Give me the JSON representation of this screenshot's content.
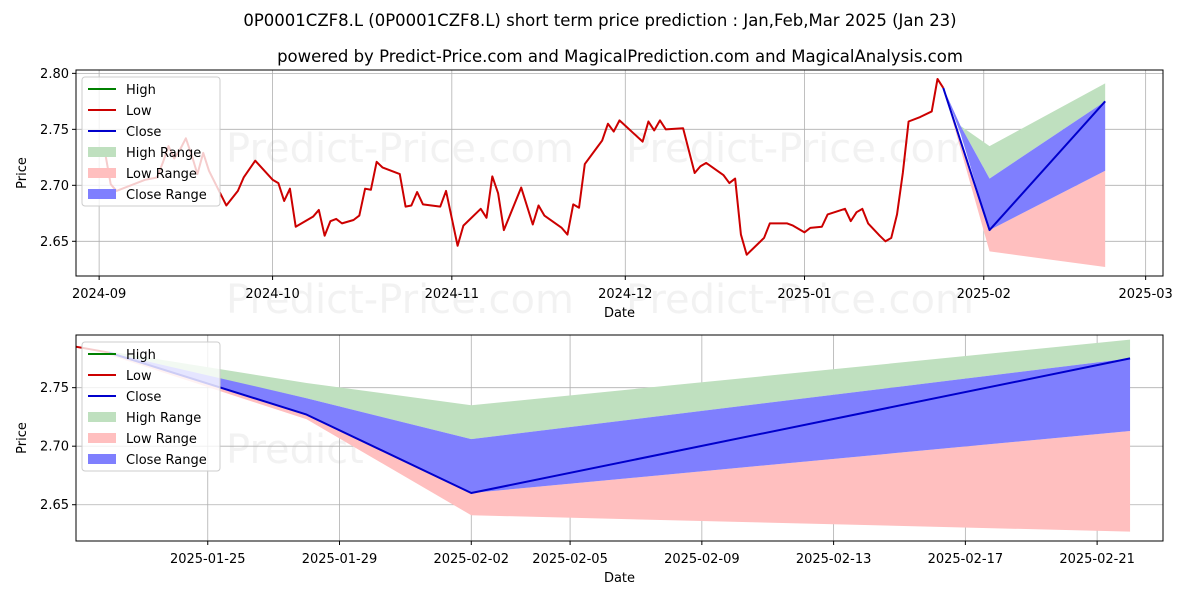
{
  "title": "0P0001CZF8.L (0P0001CZF8.L) short term price prediction : Jan,Feb,Mar 2025 (Jan 23)",
  "subtitle": "powered by Predict-Price.com and MagicalPrediction.com and MagicalAnalysis.com",
  "watermark": "Predict-Price.com",
  "colors": {
    "high": "#008000",
    "low": "#cc0000",
    "close": "#0000cc",
    "high_range": "#bfe0bf",
    "low_range": "#ffbfbf",
    "close_range": "#7f7ffe"
  },
  "legend": [
    "High",
    "Low",
    "Close",
    "High Range",
    "Low Range",
    "Close Range"
  ],
  "chart_data": [
    {
      "type": "line",
      "xlabel": "Date",
      "ylabel": "Price",
      "xlim": [
        "2024-08-28",
        "2025-03-04"
      ],
      "ylim": [
        2.619,
        2.803
      ],
      "x_ticks": [
        "2024-09",
        "2024-10",
        "2024-11",
        "2024-12",
        "2025-01",
        "2025-02",
        "2025-03"
      ],
      "y_ticks": [
        "2.65",
        "2.70",
        "2.75",
        "2.80"
      ],
      "grid": true,
      "legend_position": "upper left",
      "series": [
        {
          "name": "Low",
          "points": [
            [
              "2024-09-02",
              2.73
            ],
            [
              "2024-09-03",
              2.701
            ],
            [
              "2024-09-04",
              2.695
            ],
            [
              "2024-09-05",
              2.697
            ],
            [
              "2024-09-06",
              2.699
            ],
            [
              "2024-09-09",
              2.705
            ],
            [
              "2024-09-10",
              2.706
            ],
            [
              "2024-09-11",
              2.707
            ],
            [
              "2024-09-12",
              2.72
            ],
            [
              "2024-09-13",
              2.735
            ],
            [
              "2024-09-14",
              2.724
            ],
            [
              "2024-09-15",
              2.732
            ],
            [
              "2024-09-16",
              2.742
            ],
            [
              "2024-09-17",
              2.727
            ],
            [
              "2024-09-18",
              2.71
            ],
            [
              "2024-09-19",
              2.729
            ],
            [
              "2024-09-20",
              2.713
            ],
            [
              "2024-09-23",
              2.682
            ],
            [
              "2024-09-25",
              2.695
            ],
            [
              "2024-09-26",
              2.707
            ],
            [
              "2024-09-28",
              2.722
            ],
            [
              "2024-10-01",
              2.705
            ],
            [
              "2024-10-02",
              2.702
            ],
            [
              "2024-10-03",
              2.686
            ],
            [
              "2024-10-04",
              2.697
            ],
            [
              "2024-10-05",
              2.663
            ],
            [
              "2024-10-08",
              2.672
            ],
            [
              "2024-10-09",
              2.678
            ],
            [
              "2024-10-10",
              2.655
            ],
            [
              "2024-10-11",
              2.668
            ],
            [
              "2024-10-12",
              2.67
            ],
            [
              "2024-10-13",
              2.666
            ],
            [
              "2024-10-15",
              2.669
            ],
            [
              "2024-10-16",
              2.673
            ],
            [
              "2024-10-17",
              2.697
            ],
            [
              "2024-10-18",
              2.696
            ],
            [
              "2024-10-19",
              2.721
            ],
            [
              "2024-10-20",
              2.716
            ],
            [
              "2024-10-23",
              2.71
            ],
            [
              "2024-10-24",
              2.681
            ],
            [
              "2024-10-25",
              2.682
            ],
            [
              "2024-10-26",
              2.694
            ],
            [
              "2024-10-27",
              2.683
            ],
            [
              "2024-10-30",
              2.681
            ],
            [
              "2024-10-31",
              2.695
            ],
            [
              "2024-11-02",
              2.646
            ],
            [
              "2024-11-03",
              2.664
            ],
            [
              "2024-11-06",
              2.679
            ],
            [
              "2024-11-07",
              2.671
            ],
            [
              "2024-11-08",
              2.708
            ],
            [
              "2024-11-09",
              2.693
            ],
            [
              "2024-11-10",
              2.66
            ],
            [
              "2024-11-13",
              2.698
            ],
            [
              "2024-11-15",
              2.665
            ],
            [
              "2024-11-16",
              2.682
            ],
            [
              "2024-11-17",
              2.673
            ],
            [
              "2024-11-20",
              2.662
            ],
            [
              "2024-11-21",
              2.656
            ],
            [
              "2024-11-22",
              2.683
            ],
            [
              "2024-11-23",
              2.68
            ],
            [
              "2024-11-24",
              2.719
            ],
            [
              "2024-11-26",
              2.733
            ],
            [
              "2024-11-27",
              2.74
            ],
            [
              "2024-11-28",
              2.755
            ],
            [
              "2024-11-29",
              2.748
            ],
            [
              "2024-11-30",
              2.758
            ],
            [
              "2024-12-04",
              2.739
            ],
            [
              "2024-12-05",
              2.757
            ],
            [
              "2024-12-06",
              2.749
            ],
            [
              "2024-12-07",
              2.758
            ],
            [
              "2024-12-08",
              2.75
            ],
            [
              "2024-12-11",
              2.751
            ],
            [
              "2024-12-13",
              2.711
            ],
            [
              "2024-12-14",
              2.717
            ],
            [
              "2024-12-15",
              2.72
            ],
            [
              "2024-12-18",
              2.709
            ],
            [
              "2024-12-19",
              2.702
            ],
            [
              "2024-12-20",
              2.706
            ],
            [
              "2024-12-21",
              2.656
            ],
            [
              "2024-12-22",
              2.638
            ],
            [
              "2024-12-25",
              2.653
            ],
            [
              "2024-12-26",
              2.666
            ],
            [
              "2024-12-29",
              2.666
            ],
            [
              "2024-12-30",
              2.664
            ],
            [
              "2025-01-01",
              2.658
            ],
            [
              "2025-01-02",
              2.662
            ],
            [
              "2025-01-04",
              2.663
            ],
            [
              "2025-01-05",
              2.674
            ],
            [
              "2025-01-08",
              2.679
            ],
            [
              "2025-01-09",
              2.668
            ],
            [
              "2025-01-10",
              2.676
            ],
            [
              "2025-01-11",
              2.679
            ],
            [
              "2025-01-12",
              2.666
            ],
            [
              "2025-01-14",
              2.655
            ],
            [
              "2025-01-15",
              2.65
            ],
            [
              "2025-01-16",
              2.653
            ],
            [
              "2025-01-17",
              2.674
            ],
            [
              "2025-01-18",
              2.711
            ],
            [
              "2025-01-19",
              2.757
            ],
            [
              "2025-01-21",
              2.761
            ],
            [
              "2025-01-23",
              2.766
            ],
            [
              "2025-01-24",
              2.795
            ],
            [
              "2025-01-25",
              2.787
            ]
          ]
        },
        {
          "name": "Close",
          "points": [
            [
              "2025-01-25",
              2.787
            ],
            [
              "2025-02-02",
              2.66
            ],
            [
              "2025-02-22",
              2.775
            ]
          ]
        },
        {
          "name": "High Range",
          "upper": [
            [
              "2025-01-25",
              2.787
            ],
            [
              "2025-01-28",
              2.753
            ],
            [
              "2025-02-02",
              2.735
            ],
            [
              "2025-02-22",
              2.791
            ]
          ],
          "lower": [
            [
              "2025-01-25",
              2.787
            ],
            [
              "2025-01-28",
              2.753
            ],
            [
              "2025-02-02",
              2.706
            ],
            [
              "2025-02-22",
              2.775
            ]
          ]
        },
        {
          "name": "Low Range",
          "upper": [
            [
              "2025-01-25",
              2.787
            ],
            [
              "2025-02-02",
              2.66
            ],
            [
              "2025-02-22",
              2.713
            ]
          ],
          "lower": [
            [
              "2025-01-25",
              2.787
            ],
            [
              "2025-02-02",
              2.641
            ],
            [
              "2025-02-22",
              2.627
            ]
          ]
        },
        {
          "name": "Close Range",
          "upper": [
            [
              "2025-01-25",
              2.787
            ],
            [
              "2025-01-28",
              2.753
            ],
            [
              "2025-02-02",
              2.706
            ],
            [
              "2025-02-22",
              2.775
            ]
          ],
          "lower": [
            [
              "2025-01-25",
              2.787
            ],
            [
              "2025-01-28",
              2.746
            ],
            [
              "2025-02-02",
              2.66
            ],
            [
              "2025-02-22",
              2.713
            ]
          ]
        }
      ]
    },
    {
      "type": "line",
      "xlabel": "Date",
      "ylabel": "Price",
      "xlim": [
        "2025-01-21",
        "2025-02-23"
      ],
      "ylim": [
        2.619,
        2.795
      ],
      "x_ticks": [
        "2025-01-25",
        "2025-01-29",
        "2025-02-02",
        "2025-02-05",
        "2025-02-09",
        "2025-02-13",
        "2025-02-17",
        "2025-02-21"
      ],
      "y_ticks": [
        "2.65",
        "2.70",
        "2.75"
      ],
      "grid": true,
      "legend_position": "upper left",
      "series": [
        {
          "name": "Low",
          "points": [
            [
              "2025-01-21",
              2.785
            ],
            [
              "2025-01-22",
              2.78
            ]
          ]
        },
        {
          "name": "Close",
          "points": [
            [
              "2025-01-22",
              2.78
            ],
            [
              "2025-01-28",
              2.727
            ],
            [
              "2025-02-02",
              2.66
            ],
            [
              "2025-02-22",
              2.775
            ]
          ]
        },
        {
          "name": "High Range",
          "upper": [
            [
              "2025-01-22",
              2.781
            ],
            [
              "2025-01-28",
              2.754
            ],
            [
              "2025-02-02",
              2.735
            ],
            [
              "2025-02-22",
              2.791
            ]
          ],
          "lower": [
            [
              "2025-01-22",
              2.779
            ],
            [
              "2025-01-28",
              2.741
            ],
            [
              "2025-02-02",
              2.706
            ],
            [
              "2025-02-22",
              2.775
            ]
          ]
        },
        {
          "name": "Low Range",
          "upper": [
            [
              "2025-01-22",
              2.779
            ],
            [
              "2025-01-28",
              2.727
            ],
            [
              "2025-02-02",
              2.66
            ],
            [
              "2025-02-22",
              2.713
            ]
          ],
          "lower": [
            [
              "2025-01-22",
              2.778
            ],
            [
              "2025-01-28",
              2.723
            ],
            [
              "2025-02-02",
              2.641
            ],
            [
              "2025-02-22",
              2.627
            ]
          ]
        },
        {
          "name": "Close Range",
          "upper": [
            [
              "2025-01-22",
              2.78
            ],
            [
              "2025-01-28",
              2.741
            ],
            [
              "2025-02-02",
              2.706
            ],
            [
              "2025-02-22",
              2.775
            ]
          ],
          "lower": [
            [
              "2025-01-22",
              2.779
            ],
            [
              "2025-01-28",
              2.727
            ],
            [
              "2025-02-02",
              2.66
            ],
            [
              "2025-02-22",
              2.713
            ]
          ]
        }
      ]
    }
  ]
}
